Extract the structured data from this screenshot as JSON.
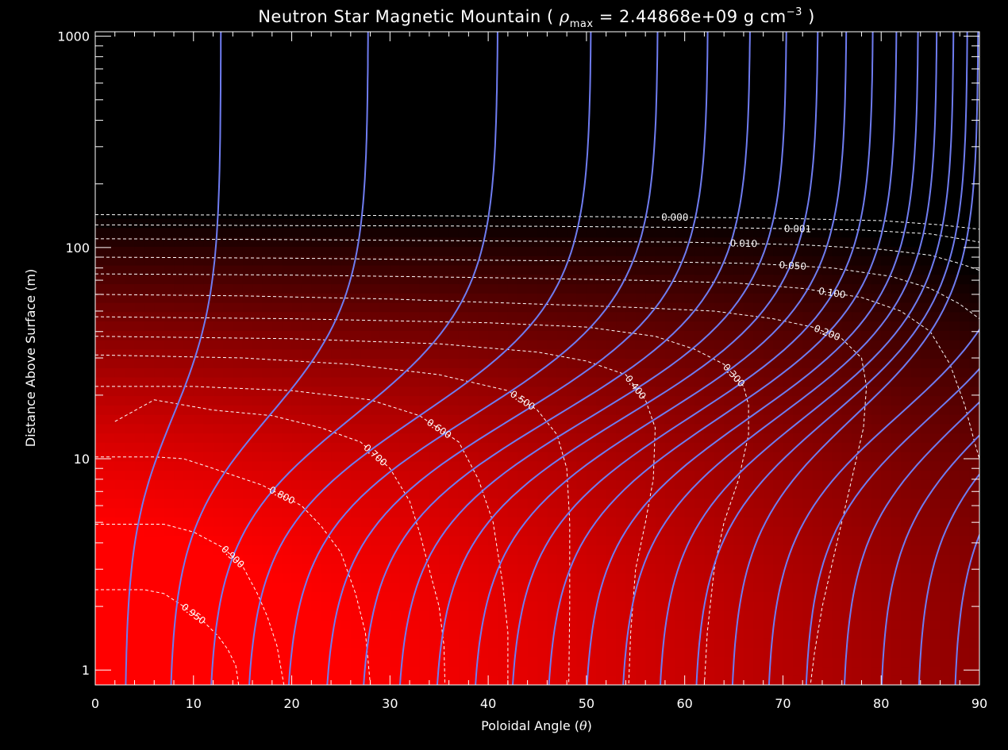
{
  "chart_data": {
    "type": "heatmap",
    "title_main": "Neutron Star Magnetic Mountain ( ",
    "title_rho": "ρ",
    "title_rho_sub": "max",
    "title_eq_value": " =  2.44868e+09 g cm",
    "title_exp": "−3",
    "title_close": " )",
    "xlabel_main": "Poloidal Angle (",
    "xlabel_theta": "θ",
    "xlabel_close": ")",
    "ylabel": "Distance Above Surface (m)",
    "x_scale": "linear",
    "y_scale": "log",
    "xlim": [
      0,
      90
    ],
    "ylim": [
      0.85,
      1050
    ],
    "x_ticks": [
      0,
      10,
      20,
      30,
      40,
      50,
      60,
      70,
      80,
      90
    ],
    "x_tick_labels": [
      "0",
      "10",
      "20",
      "30",
      "40",
      "50",
      "60",
      "70",
      "80",
      "90"
    ],
    "y_ticks": [
      1,
      10,
      100,
      1000
    ],
    "y_tick_labels": [
      "1",
      "10",
      "100",
      "1000"
    ],
    "colormap": {
      "low": "#000000",
      "high": "#ff0000",
      "variable": "density / rho_max"
    },
    "field_line_color": "#6f7cf0",
    "density_contour_color": "#ffffff",
    "density_contour_style": "dashed",
    "density_contours": [
      {
        "level": 0.95,
        "label": "0.950",
        "points": [
          [
            0,
            2.4
          ],
          [
            5,
            2.4
          ],
          [
            7,
            2.3
          ],
          [
            9,
            2.0
          ],
          [
            11,
            1.7
          ],
          [
            12.5,
            1.45
          ],
          [
            13.5,
            1.25
          ],
          [
            14.3,
            1.05
          ],
          [
            14.6,
            0.85
          ]
        ]
      },
      {
        "level": 0.9,
        "label": "0.900",
        "points": [
          [
            0,
            4.9
          ],
          [
            7,
            4.9
          ],
          [
            10,
            4.5
          ],
          [
            13,
            3.8
          ],
          [
            15,
            3.1
          ],
          [
            16.5,
            2.3
          ],
          [
            17.5,
            1.8
          ],
          [
            18.5,
            1.3
          ],
          [
            19.2,
            0.85
          ]
        ]
      },
      {
        "level": 0.8,
        "label": "0.800",
        "points": [
          [
            0,
            10.2
          ],
          [
            6,
            10.2
          ],
          [
            9,
            10
          ],
          [
            12,
            9
          ],
          [
            17,
            7.5
          ],
          [
            21,
            6
          ],
          [
            23,
            4.8
          ],
          [
            25,
            3.6
          ],
          [
            26.5,
            2.3
          ],
          [
            27.5,
            1.5
          ],
          [
            28,
            0.85
          ]
        ]
      },
      {
        "level": 0.7,
        "label": "0.700",
        "points": [
          [
            2,
            15
          ],
          [
            6,
            19
          ],
          [
            12,
            17
          ],
          [
            18,
            16
          ],
          [
            23,
            14
          ],
          [
            27,
            12
          ],
          [
            30,
            9
          ],
          [
            32,
            6.3
          ],
          [
            33,
            4.5
          ],
          [
            34,
            3
          ],
          [
            35,
            2
          ],
          [
            35.5,
            1.3
          ],
          [
            35.6,
            0.85
          ]
        ]
      },
      {
        "level": 0.6,
        "label": "0.600",
        "points": [
          [
            0,
            22
          ],
          [
            10,
            22
          ],
          [
            20,
            21
          ],
          [
            28,
            19
          ],
          [
            33,
            16
          ],
          [
            37,
            12
          ],
          [
            39,
            8
          ],
          [
            40.5,
            5
          ],
          [
            41.5,
            2.5
          ],
          [
            42,
            1.5
          ],
          [
            42,
            0.85
          ]
        ]
      },
      {
        "level": 0.5,
        "label": "0.500",
        "points": [
          [
            0,
            31
          ],
          [
            15,
            30
          ],
          [
            26,
            28
          ],
          [
            35,
            25
          ],
          [
            42,
            21
          ],
          [
            45,
            17
          ],
          [
            47,
            13
          ],
          [
            48,
            9
          ],
          [
            48.3,
            5
          ],
          [
            48.3,
            2
          ],
          [
            48.2,
            0.85
          ]
        ]
      },
      {
        "level": 0.4,
        "label": "0.400",
        "points": [
          [
            0,
            38
          ],
          [
            20,
            37
          ],
          [
            35,
            35
          ],
          [
            45,
            32
          ],
          [
            50,
            29
          ],
          [
            54,
            25
          ],
          [
            56,
            19
          ],
          [
            57,
            14
          ],
          [
            56.8,
            8
          ],
          [
            56,
            5
          ],
          [
            55,
            3
          ],
          [
            54.5,
            1.5
          ],
          [
            54.3,
            0.85
          ]
        ]
      },
      {
        "level": 0.3,
        "label": "0.300",
        "points": [
          [
            0,
            47
          ],
          [
            20,
            46
          ],
          [
            40,
            44
          ],
          [
            50,
            42
          ],
          [
            57,
            38
          ],
          [
            61,
            33
          ],
          [
            64,
            28
          ],
          [
            66,
            22
          ],
          [
            66.5,
            18
          ],
          [
            66.5,
            13
          ],
          [
            65.5,
            8
          ],
          [
            64,
            5
          ],
          [
            63,
            3
          ],
          [
            62.3,
            1.5
          ],
          [
            62,
            0.85
          ]
        ]
      },
      {
        "level": 0.2,
        "label": "0.200",
        "points": [
          [
            0,
            60
          ],
          [
            15,
            59
          ],
          [
            30,
            57
          ],
          [
            45,
            54
          ],
          [
            55,
            52
          ],
          [
            63,
            50
          ],
          [
            69,
            46
          ],
          [
            73,
            42
          ],
          [
            76,
            37
          ],
          [
            78,
            30
          ],
          [
            78.5,
            22
          ],
          [
            78.2,
            14
          ],
          [
            77,
            8
          ],
          [
            75.5,
            4
          ],
          [
            74,
            2
          ],
          [
            73.2,
            1.2
          ],
          [
            72.8,
            0.85
          ]
        ]
      },
      {
        "level": 0.1,
        "label": "0.100",
        "points": [
          [
            0,
            75
          ],
          [
            20,
            74
          ],
          [
            40,
            72
          ],
          [
            55,
            70
          ],
          [
            65,
            68
          ],
          [
            72,
            64
          ],
          [
            78,
            58
          ],
          [
            82,
            50
          ],
          [
            85,
            40
          ],
          [
            87,
            28
          ],
          [
            88.5,
            18
          ],
          [
            89.5,
            12
          ],
          [
            90,
            10
          ]
        ]
      },
      {
        "level": 0.05,
        "label": "0.050",
        "points": [
          [
            0,
            90
          ],
          [
            20,
            89
          ],
          [
            40,
            87
          ],
          [
            55,
            86
          ],
          [
            67,
            84
          ],
          [
            75,
            80
          ],
          [
            81,
            73
          ],
          [
            85,
            64
          ],
          [
            88,
            54
          ],
          [
            90,
            46
          ]
        ]
      },
      {
        "level": 0.01,
        "label": "0.010",
        "points": [
          [
            0,
            110
          ],
          [
            20,
            109
          ],
          [
            45,
            107
          ],
          [
            60,
            106
          ],
          [
            72,
            103
          ],
          [
            80,
            98
          ],
          [
            85,
            92
          ],
          [
            88,
            84
          ],
          [
            90,
            78
          ]
        ]
      },
      {
        "level": 0.001,
        "label": "0.001",
        "points": [
          [
            0,
            128
          ],
          [
            20,
            127
          ],
          [
            45,
            126
          ],
          [
            65,
            124
          ],
          [
            78,
            121
          ],
          [
            85,
            116
          ],
          [
            88,
            110
          ],
          [
            90,
            106
          ]
        ]
      },
      {
        "level": 0.0,
        "label": "0.000",
        "points": [
          [
            0,
            143
          ],
          [
            25,
            142
          ],
          [
            50,
            140
          ],
          [
            68,
            138
          ],
          [
            80,
            134
          ],
          [
            86,
            128
          ],
          [
            90,
            122
          ]
        ]
      }
    ],
    "field_line_bottom_angles": [
      3.0,
      7.5,
      11.5,
      15.3,
      19.3,
      23.2,
      26.9,
      30.6,
      34.4,
      38.3,
      42.1,
      45.8,
      49.7,
      53.4,
      57.2,
      60.9,
      64.6,
      68.3,
      72.1,
      76.0,
      79.8,
      83.6,
      87.3
    ],
    "field_line_top_angles": [
      12.8,
      27.8,
      41.0,
      50.5,
      57.3,
      62.4,
      66.7,
      70.4,
      73.6,
      76.5,
      79.2,
      81.6,
      83.8,
      85.7,
      87.4,
      88.8,
      89.9
    ],
    "field_line_profile": {
      "center_log10_height": 1.2,
      "width_log10_height": 0.28
    }
  }
}
